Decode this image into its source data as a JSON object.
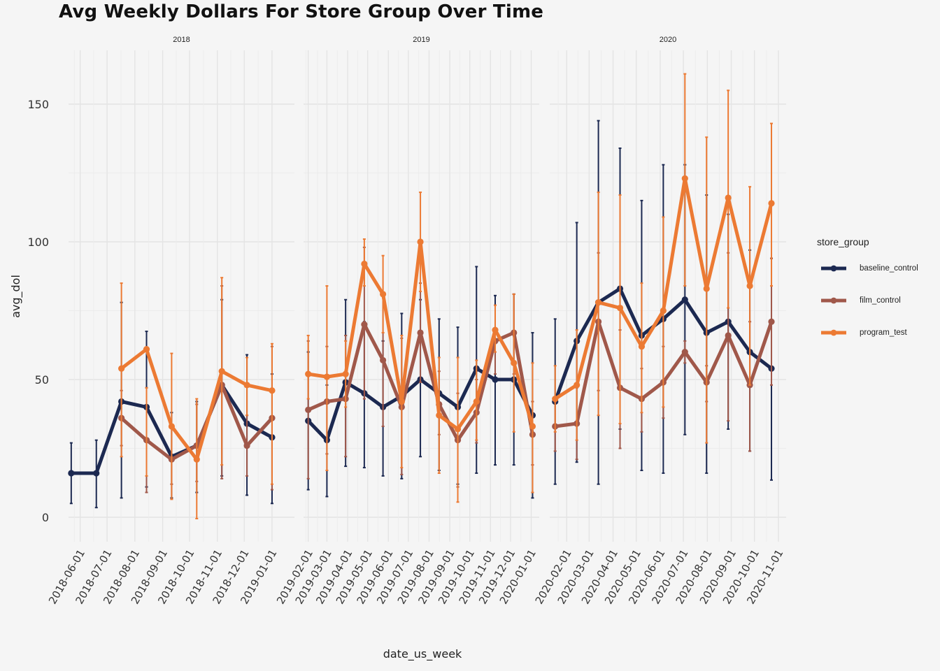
{
  "chart_data": {
    "type": "line",
    "title": "Avg Weekly Dollars For Store Group Over Time",
    "xlabel": "date_us_week",
    "ylabel": "avg_dol",
    "ylim": [
      -8,
      170
    ],
    "y_ticks": [
      0,
      50,
      100,
      150
    ],
    "legend": {
      "title": "store_group",
      "position": "right"
    },
    "colors": {
      "baseline_control": "#1c2951",
      "film_control": "#a0584a",
      "program_test": "#ec7a33"
    },
    "panels": [
      {
        "label": "2018",
        "x_range": [
          "2018-05-19",
          "2019-01-26"
        ],
        "x_ticks": [
          "2018-06-01",
          "2018-07-01",
          "2018-08-01",
          "2018-09-01",
          "2018-10-01",
          "2018-11-01",
          "2018-12-01",
          "2019-01-01"
        ],
        "series": [
          {
            "name": "baseline_control",
            "points": [
              {
                "x": "2018-05-22",
                "y": 16,
                "lo": 5,
                "hi": 27
              },
              {
                "x": "2018-06-19",
                "y": 16,
                "lo": 3.5,
                "hi": 28
              },
              {
                "x": "2018-07-17",
                "y": 42,
                "lo": 7,
                "hi": 78
              },
              {
                "x": "2018-08-14",
                "y": 40,
                "lo": 11,
                "hi": 67.5
              },
              {
                "x": "2018-09-11",
                "y": 22,
                "lo": 7,
                "hi": 38
              },
              {
                "x": "2018-10-09",
                "y": 26,
                "lo": 9,
                "hi": 42
              },
              {
                "x": "2018-11-06",
                "y": 48,
                "lo": 15,
                "hi": 79
              },
              {
                "x": "2018-12-04",
                "y": 34,
                "lo": 8,
                "hi": 59
              },
              {
                "x": "2019-01-01",
                "y": 29,
                "lo": 5,
                "hi": 52
              }
            ]
          },
          {
            "name": "film_control",
            "points": [
              {
                "x": "2018-07-17",
                "y": 36,
                "lo": 26,
                "hi": 46
              },
              {
                "x": "2018-08-14",
                "y": 28,
                "lo": 9,
                "hi": 47
              },
              {
                "x": "2018-09-11",
                "y": 21,
                "lo": 12,
                "hi": 33
              },
              {
                "x": "2018-10-09",
                "y": 26,
                "lo": 13,
                "hi": 41
              },
              {
                "x": "2018-11-06",
                "y": 48,
                "lo": 14,
                "hi": 84
              },
              {
                "x": "2018-12-04",
                "y": 26,
                "lo": 15,
                "hi": 37
              },
              {
                "x": "2019-01-01",
                "y": 36,
                "lo": 10,
                "hi": 62
              }
            ]
          },
          {
            "name": "program_test",
            "points": [
              {
                "x": "2018-07-17",
                "y": 54,
                "lo": 22,
                "hi": 85
              },
              {
                "x": "2018-08-14",
                "y": 61,
                "lo": 15,
                "hi": 47
              },
              {
                "x": "2018-09-11",
                "y": 33,
                "lo": 6.5,
                "hi": 59.5
              },
              {
                "x": "2018-10-09",
                "y": 21,
                "lo": -0.5,
                "hi": 43
              },
              {
                "x": "2018-11-06",
                "y": 53,
                "lo": 19,
                "hi": 87
              },
              {
                "x": "2018-12-04",
                "y": 48,
                "lo": 37,
                "hi": 58
              },
              {
                "x": "2019-01-01",
                "y": 46,
                "lo": 12,
                "hi": 63
              }
            ]
          }
        ]
      },
      {
        "label": "2019",
        "x_range": [
          "2019-01-25",
          "2020-01-13"
        ],
        "x_ticks": [
          "2019-02-01",
          "2019-03-01",
          "2019-04-01",
          "2019-05-01",
          "2019-06-01",
          "2019-07-01",
          "2019-08-01",
          "2019-09-01",
          "2019-10-01",
          "2019-11-01",
          "2019-12-01",
          "2020-01-01"
        ],
        "series": [
          {
            "name": "baseline_control",
            "points": [
              {
                "x": "2019-02-01",
                "y": 35,
                "lo": 10,
                "hi": 60
              },
              {
                "x": "2019-03-01",
                "y": 28,
                "lo": 7.5,
                "hi": 48
              },
              {
                "x": "2019-03-29",
                "y": 49,
                "lo": 18.5,
                "hi": 79
              },
              {
                "x": "2019-04-26",
                "y": 45,
                "lo": 18,
                "hi": 71
              },
              {
                "x": "2019-05-24",
                "y": 40,
                "lo": 15,
                "hi": 64
              },
              {
                "x": "2019-06-21",
                "y": 44,
                "lo": 14,
                "hi": 74
              },
              {
                "x": "2019-07-19",
                "y": 50,
                "lo": 22,
                "hi": 79
              },
              {
                "x": "2019-08-16",
                "y": 45,
                "lo": 17,
                "hi": 72
              },
              {
                "x": "2019-09-13",
                "y": 40,
                "lo": 12,
                "hi": 69
              },
              {
                "x": "2019-10-11",
                "y": 54,
                "lo": 16,
                "hi": 91
              },
              {
                "x": "2019-11-08",
                "y": 50,
                "lo": 19,
                "hi": 80.5
              },
              {
                "x": "2019-12-06",
                "y": 50,
                "lo": 19,
                "hi": 81
              },
              {
                "x": "2020-01-03",
                "y": 37,
                "lo": 7,
                "hi": 67
              }
            ]
          },
          {
            "name": "film_control",
            "points": [
              {
                "x": "2019-02-01",
                "y": 39,
                "lo": 14,
                "hi": 64
              },
              {
                "x": "2019-03-01",
                "y": 42,
                "lo": 23,
                "hi": 62
              },
              {
                "x": "2019-03-29",
                "y": 43,
                "lo": 22,
                "hi": 66
              },
              {
                "x": "2019-04-26",
                "y": 70,
                "lo": 43,
                "hi": 98
              },
              {
                "x": "2019-05-24",
                "y": 57,
                "lo": 33,
                "hi": 81
              },
              {
                "x": "2019-06-21",
                "y": 40,
                "lo": 15.5,
                "hi": 65
              },
              {
                "x": "2019-07-19",
                "y": 67,
                "lo": 49,
                "hi": 85
              },
              {
                "x": "2019-08-16",
                "y": 41,
                "lo": 30,
                "hi": 53
              },
              {
                "x": "2019-09-13",
                "y": 28,
                "lo": 11,
                "hi": 45
              },
              {
                "x": "2019-10-11",
                "y": 38,
                "lo": 27,
                "hi": 50
              },
              {
                "x": "2019-11-08",
                "y": 64,
                "lo": 52,
                "hi": 77
              },
              {
                "x": "2019-12-06",
                "y": 67,
                "lo": 52,
                "hi": 81
              },
              {
                "x": "2020-01-03",
                "y": 30,
                "lo": 19,
                "hi": 42
              }
            ]
          },
          {
            "name": "program_test",
            "points": [
              {
                "x": "2019-02-01",
                "y": 52,
                "lo": 43,
                "hi": 66
              },
              {
                "x": "2019-03-01",
                "y": 51,
                "lo": 17,
                "hi": 84
              },
              {
                "x": "2019-03-29",
                "y": 52,
                "lo": 40,
                "hi": 64
              },
              {
                "x": "2019-04-26",
                "y": 92,
                "lo": 84,
                "hi": 101
              },
              {
                "x": "2019-05-24",
                "y": 81,
                "lo": 67,
                "hi": 95
              },
              {
                "x": "2019-06-21",
                "y": 42,
                "lo": 18,
                "hi": 66
              },
              {
                "x": "2019-07-19",
                "y": 100,
                "lo": 82,
                "hi": 118
              },
              {
                "x": "2019-08-16",
                "y": 37,
                "lo": 16,
                "hi": 58
              },
              {
                "x": "2019-09-13",
                "y": 32,
                "lo": 5.5,
                "hi": 58
              },
              {
                "x": "2019-10-11",
                "y": 42,
                "lo": 28,
                "hi": 57
              },
              {
                "x": "2019-11-08",
                "y": 68,
                "lo": 60,
                "hi": 77
              },
              {
                "x": "2019-12-06",
                "y": 56,
                "lo": 31,
                "hi": 81
              },
              {
                "x": "2020-01-03",
                "y": 33,
                "lo": 9,
                "hi": 56
              }
            ]
          }
        ]
      },
      {
        "label": "2020",
        "x_range": [
          "2020-01-10",
          "2020-11-11"
        ],
        "x_ticks": [
          "2020-02-01",
          "2020-03-01",
          "2020-04-01",
          "2020-05-01",
          "2020-06-01",
          "2020-07-01",
          "2020-08-01",
          "2020-09-01",
          "2020-10-01",
          "2020-11-01"
        ],
        "series": [
          {
            "name": "baseline_control",
            "points": [
              {
                "x": "2020-01-17",
                "y": 42,
                "lo": 12,
                "hi": 72
              },
              {
                "x": "2020-02-14",
                "y": 64,
                "lo": 20,
                "hi": 107
              },
              {
                "x": "2020-03-13",
                "y": 78,
                "lo": 12,
                "hi": 144
              },
              {
                "x": "2020-04-10",
                "y": 83,
                "lo": 32,
                "hi": 134
              },
              {
                "x": "2020-05-08",
                "y": 66,
                "lo": 17,
                "hi": 115
              },
              {
                "x": "2020-06-05",
                "y": 72,
                "lo": 16,
                "hi": 128
              },
              {
                "x": "2020-07-03",
                "y": 79,
                "lo": 30,
                "hi": 128
              },
              {
                "x": "2020-07-31",
                "y": 67,
                "lo": 16,
                "hi": 117
              },
              {
                "x": "2020-08-28",
                "y": 71,
                "lo": 32,
                "hi": 110
              },
              {
                "x": "2020-09-25",
                "y": 60,
                "lo": 24,
                "hi": 97
              },
              {
                "x": "2020-10-23",
                "y": 54,
                "lo": 13.5,
                "hi": 94
              }
            ]
          },
          {
            "name": "film_control",
            "points": [
              {
                "x": "2020-01-17",
                "y": 33,
                "lo": 24,
                "hi": 42
              },
              {
                "x": "2020-02-14",
                "y": 34,
                "lo": 21,
                "hi": 47
              },
              {
                "x": "2020-03-13",
                "y": 71,
                "lo": 46,
                "hi": 96
              },
              {
                "x": "2020-04-10",
                "y": 47,
                "lo": 25,
                "hi": 68
              },
              {
                "x": "2020-05-08",
                "y": 43,
                "lo": 31,
                "hi": 54
              },
              {
                "x": "2020-06-05",
                "y": 49,
                "lo": 36,
                "hi": 62
              },
              {
                "x": "2020-07-03",
                "y": 60,
                "lo": 56,
                "hi": 64
              },
              {
                "x": "2020-07-31",
                "y": 49,
                "lo": 42,
                "hi": 55
              },
              {
                "x": "2020-08-28",
                "y": 66,
                "lo": 35,
                "hi": 96
              },
              {
                "x": "2020-09-25",
                "y": 48,
                "lo": 24,
                "hi": 71
              },
              {
                "x": "2020-10-23",
                "y": 71,
                "lo": 48,
                "hi": 94
              }
            ]
          },
          {
            "name": "program_test",
            "points": [
              {
                "x": "2020-01-17",
                "y": 43,
                "lo": 31,
                "hi": 55
              },
              {
                "x": "2020-02-14",
                "y": 48,
                "lo": 28,
                "hi": 68
              },
              {
                "x": "2020-03-13",
                "y": 78,
                "lo": 37,
                "hi": 118
              },
              {
                "x": "2020-04-10",
                "y": 76,
                "lo": 34,
                "hi": 117
              },
              {
                "x": "2020-05-08",
                "y": 62,
                "lo": 38,
                "hi": 85
              },
              {
                "x": "2020-06-05",
                "y": 75,
                "lo": 40,
                "hi": 109
              },
              {
                "x": "2020-07-03",
                "y": 123,
                "lo": 84,
                "hi": 161
              },
              {
                "x": "2020-07-31",
                "y": 83,
                "lo": 27,
                "hi": 138
              },
              {
                "x": "2020-08-28",
                "y": 116,
                "lo": 76,
                "hi": 155
              },
              {
                "x": "2020-09-25",
                "y": 84,
                "lo": 48,
                "hi": 120
              },
              {
                "x": "2020-10-23",
                "y": 114,
                "lo": 84,
                "hi": 143
              }
            ]
          }
        ]
      }
    ]
  }
}
